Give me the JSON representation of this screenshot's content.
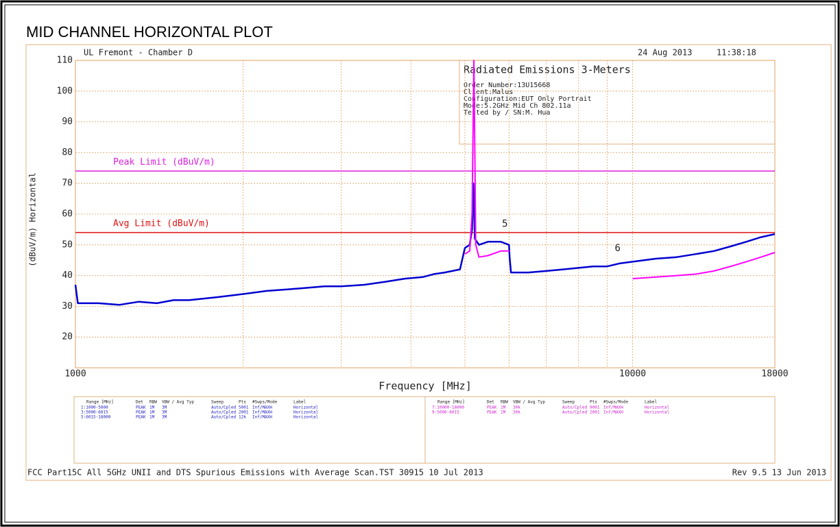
{
  "header": "MID CHANNEL HORIZONTAL PLOT",
  "chart_data": {
    "type": "line",
    "site": "UL Fremont - Chamber D",
    "date": "24 Aug 2013",
    "time": "11:38:18",
    "info": {
      "title": "Radiated Emissions 3-Meters",
      "lines": [
        "Order Number:13U15668",
        "Client:Malus",
        "Configuration:EUT Only Portrait",
        "Mode:5.2GHz Mid Ch 802.11a",
        "Tested by / SN:M. Hua"
      ]
    },
    "y_label": "(dBuV/m) Horizontal",
    "x_label": "Frequency [MHz]",
    "xscale": "log",
    "xlim": [
      1000,
      18000
    ],
    "xticks": [
      1000,
      10000,
      18000
    ],
    "xgrid": [
      2000,
      3000,
      4000,
      5000,
      6000,
      7000,
      8000,
      9000
    ],
    "ylim": [
      10,
      110
    ],
    "yticks": [
      20,
      30,
      40,
      50,
      60,
      70,
      80,
      90,
      100,
      110
    ],
    "grid": true,
    "series": [
      {
        "color": "#0000d0",
        "x": [
          1000,
          1010,
          1100,
          1200,
          1300,
          1400,
          1500,
          1600,
          1800,
          2000,
          2200,
          2400,
          2600,
          2800,
          3000,
          3300,
          3600,
          3900,
          4200,
          4400,
          4600,
          4900,
          5000,
          5100,
          5150,
          5180,
          5210,
          5300,
          5500,
          5800,
          6000,
          6015,
          6050,
          6500,
          7000,
          7500,
          8000,
          8500,
          9000,
          9500,
          10000,
          11000,
          12000,
          13000,
          14000,
          15000,
          16000,
          17000,
          18000
        ],
        "values": [
          37,
          31,
          31,
          30.5,
          31.5,
          31,
          32,
          32,
          33,
          34,
          35,
          35.5,
          36,
          36.5,
          36.5,
          37,
          38,
          39,
          39.5,
          40.5,
          41,
          42,
          49,
          50,
          55,
          70,
          52,
          50,
          51,
          51,
          50,
          46,
          41,
          41,
          41.5,
          42,
          42.5,
          43,
          43,
          44,
          44.5,
          45.5,
          46,
          47,
          48,
          49.5,
          51,
          52.5,
          53.5
        ]
      },
      {
        "color": "#ff00ff",
        "x": [
          5000,
          5100,
          5150,
          5190,
          5230,
          5300,
          5500,
          5800,
          6000,
          6015,
          8000,
          10000,
          11000,
          12000,
          13000,
          14000,
          15000,
          16000,
          17000,
          18000
        ],
        "values": [
          47,
          48,
          60,
          110,
          50,
          46,
          46.5,
          48,
          48,
          48,
          null,
          39,
          39.5,
          40,
          40.5,
          41.5,
          43,
          44.5,
          46,
          47.5
        ]
      }
    ],
    "limits": [
      {
        "name": "Peak Limit (dBuV/m)",
        "value": 74,
        "color": "#e020e0"
      },
      {
        "name": "Avg Limit (dBuV/m)",
        "value": 54,
        "color": "#e01010"
      }
    ],
    "annotations": [
      {
        "text": "5",
        "x": 5900,
        "y": 55
      },
      {
        "text": "6",
        "x": 9400,
        "y": 47
      }
    ]
  },
  "table": {
    "headers": [
      "Range [MHz]",
      "Det",
      "RBW",
      "VBW / Avg Typ",
      "Sweep",
      "Pts",
      "#Swps/Mode",
      "Label"
    ],
    "left_rows": [
      [
        "1:1000-5000",
        "PEAK",
        "1M",
        "3M",
        "Auto/Cpled",
        "5001",
        "Inf/MAXH",
        "Horizontal"
      ],
      [
        "3:5000-6015",
        "PEAK",
        "1M",
        "3M",
        "Auto/Cpled",
        "2001",
        "Inf/MAXH",
        "Horizontal"
      ],
      [
        "5:6015-18000",
        "PEAK",
        "1M",
        "3M",
        "Auto/Cpled",
        "12k",
        "Inf/MAXH",
        "Horizontal"
      ]
    ],
    "right_rows": [
      [
        "7:10000-18000",
        "PEAK",
        "1M",
        "30k",
        "Auto/Cpled",
        "9001",
        "Inf/MAXH",
        "Horizontal"
      ],
      [
        "9:5000-6015",
        "PEAK",
        "1M",
        "30k",
        "Auto/Cpled",
        "2001",
        "Inf/MAXH",
        "Horizontal"
      ]
    ]
  },
  "footer": {
    "left": "FCC Part15C All 5GHz UNII and DTS Spurious Emissions with Average Scan.TST 30915 10 Jul 2013",
    "right": "Rev 9.5 13 Jun 2013"
  }
}
